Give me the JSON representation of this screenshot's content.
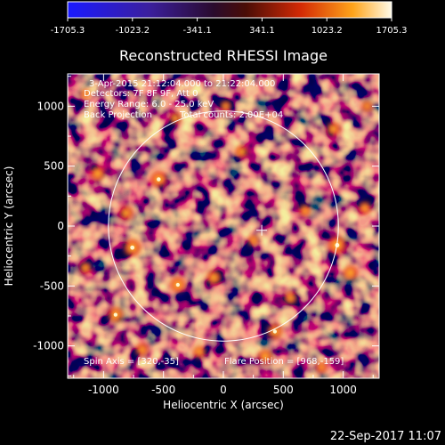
{
  "colorbar": {
    "tick_labels": [
      "-1705.3",
      "-1023.2",
      "-341.1",
      "341.1",
      "1023.2",
      "1705.3"
    ],
    "min": -1705.3,
    "max": 1705.3
  },
  "chart_data": {
    "type": "heatmap",
    "title": "Reconstructed RHESSI Image",
    "xlabel": "Heliocentric X (arcsec)",
    "ylabel": "Heliocentric Y (arcsec)",
    "xlim": [
      -1300,
      1300
    ],
    "ylim": [
      -1270,
      1270
    ],
    "x_ticks": [
      -1000,
      -500,
      0,
      500,
      1000
    ],
    "y_ticks": [
      -1000,
      -500,
      0,
      500,
      1000
    ],
    "x_tick_labels": [
      "-1000",
      "-500",
      "0",
      "500",
      "1000"
    ],
    "y_tick_labels": [
      "-1000",
      "-500",
      "0",
      "500",
      "1000"
    ],
    "solar_limb_radius_arcsec": 960,
    "flare_position": [
      968,
      -159
    ],
    "spin_axis": [
      320,
      -35
    ],
    "annotations": {
      "time": "3-Apr-2015 21:12:04.000 to 21:22:04.000",
      "detectors": "Detectors: 7F 8F 9F, Att 0",
      "energy": "Energy Range: 6.0 - 25.0 keV",
      "method": "Back Projection",
      "counts": "Total counts: 2.00E+04",
      "spin": "Spin Axis = [320,-35]",
      "flare": "Flare Position = [968,-159]"
    },
    "hotspots": [
      [
        950,
        -160,
        1.0
      ],
      [
        -760,
        -180,
        0.95
      ],
      [
        -540,
        390,
        0.9
      ],
      [
        -380,
        -490,
        0.85
      ],
      [
        -900,
        -740,
        0.85
      ],
      [
        430,
        -880,
        0.85
      ],
      [
        350,
        -1090,
        0.8
      ],
      [
        1060,
        -390,
        0.8
      ],
      [
        -810,
        110,
        0.75
      ],
      [
        -80,
        -430,
        0.8
      ],
      [
        920,
        810,
        0.75
      ],
      [
        -1050,
        440,
        0.8
      ],
      [
        150,
        620,
        0.7
      ],
      [
        -200,
        -1050,
        0.7
      ],
      [
        680,
        130,
        0.65
      ],
      [
        -400,
        900,
        0.65
      ],
      [
        1180,
        150,
        0.7
      ],
      [
        250,
        -120,
        0.6
      ],
      [
        560,
        -600,
        0.7
      ],
      [
        -680,
        -1030,
        0.7
      ],
      [
        20,
        1000,
        0.6
      ],
      [
        -1150,
        -350,
        0.65
      ],
      [
        820,
        -1180,
        0.6
      ],
      [
        1200,
        1000,
        0.6
      ],
      [
        -1150,
        1100,
        0.55
      ]
    ]
  },
  "footer": {
    "timestamp": "22-Sep-2017 11:07"
  }
}
